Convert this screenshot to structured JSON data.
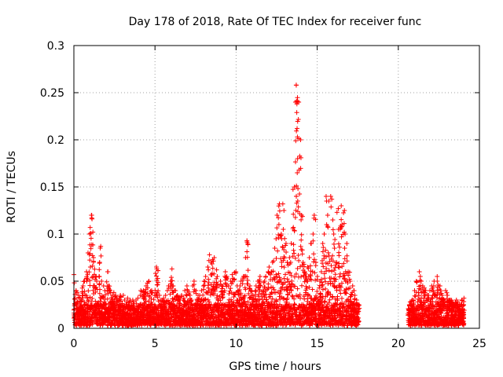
{
  "chart_data": {
    "type": "scatter",
    "title": "Day 178 of 2018, Rate Of TEC Index for receiver func",
    "xlabel": "GPS time / hours",
    "ylabel": "ROTI / TECUs",
    "xlim": [
      0,
      25
    ],
    "ylim": [
      0,
      0.3
    ],
    "x_ticks": [
      0,
      5,
      10,
      15,
      20,
      25
    ],
    "y_ticks": [
      0,
      0.05,
      0.1,
      0.15,
      0.2,
      0.25,
      0.3
    ],
    "x_tick_labels": [
      "0",
      "5",
      "10",
      "15",
      "20",
      "25"
    ],
    "y_tick_labels": [
      "0",
      "0.05",
      "0.1",
      "0.15",
      "0.2",
      "0.25",
      "0.3"
    ],
    "grid": true,
    "marker": "plus",
    "color": "#ff0000",
    "segments": [
      {
        "name": "",
        "x": [
          0.0,
          0.1,
          0.2,
          0.3,
          0.4,
          0.5,
          0.6,
          0.7,
          0.8,
          0.9,
          1.0,
          1.1,
          1.2,
          1.3,
          1.4,
          1.5,
          1.6,
          1.7,
          1.8,
          1.9,
          2.0,
          2.1,
          2.2,
          2.3,
          2.4,
          2.5,
          2.6,
          2.7,
          2.8,
          2.9,
          3.0,
          3.1,
          3.2,
          3.3,
          3.4,
          3.5,
          3.6,
          3.7,
          3.8,
          3.9,
          4.0,
          4.1,
          4.2,
          4.3,
          4.4,
          4.5,
          4.6,
          4.7,
          4.8,
          4.9,
          5.0,
          5.1,
          5.2,
          5.3,
          5.4,
          5.5,
          5.6,
          5.7,
          5.8,
          5.9,
          6.0,
          6.1,
          6.2,
          6.3,
          6.4,
          6.5,
          6.6,
          6.7,
          6.8,
          6.9,
          7.0,
          7.1,
          7.2,
          7.3,
          7.4,
          7.5,
          7.6,
          7.7,
          7.8,
          7.9,
          8.0,
          8.1,
          8.2,
          8.3,
          8.4,
          8.5,
          8.6,
          8.7,
          8.8,
          8.9,
          9.0,
          9.1,
          9.2,
          9.3,
          9.4,
          9.5,
          9.6,
          9.7,
          9.8,
          9.9,
          10.0,
          10.1,
          10.2,
          10.3,
          10.4,
          10.5,
          10.6,
          10.7,
          10.8,
          10.9,
          11.0,
          11.1,
          11.2,
          11.3,
          11.4,
          11.5,
          11.6,
          11.7,
          11.8,
          11.9,
          12.0,
          12.1,
          12.2,
          12.3,
          12.4,
          12.5,
          12.6,
          12.7,
          12.8,
          12.9,
          13.0,
          13.1,
          13.2,
          13.3,
          13.4,
          13.5,
          13.6,
          13.7,
          13.8,
          13.9,
          14.0,
          14.1,
          14.2,
          14.3,
          14.4,
          14.5,
          14.6,
          14.7,
          14.8,
          14.9,
          15.0,
          15.1,
          15.2,
          15.3,
          15.4,
          15.5,
          15.6,
          15.7,
          15.8,
          15.9,
          16.0,
          16.1,
          16.2,
          16.3,
          16.4,
          16.5,
          16.6,
          16.7,
          16.8,
          16.9,
          17.0,
          17.1,
          17.2,
          17.3,
          17.4,
          17.5
        ],
        "y_max": [
          0.057,
          0.04,
          0.035,
          0.032,
          0.03,
          0.045,
          0.05,
          0.06,
          0.08,
          0.1,
          0.12,
          0.117,
          0.075,
          0.055,
          0.05,
          0.07,
          0.087,
          0.05,
          0.045,
          0.04,
          0.06,
          0.045,
          0.04,
          0.035,
          0.038,
          0.035,
          0.032,
          0.03,
          0.035,
          0.033,
          0.035,
          0.03,
          0.028,
          0.032,
          0.03,
          0.025,
          0.03,
          0.028,
          0.03,
          0.032,
          0.035,
          0.04,
          0.04,
          0.038,
          0.045,
          0.048,
          0.05,
          0.04,
          0.038,
          0.035,
          0.065,
          0.063,
          0.035,
          0.03,
          0.03,
          0.032,
          0.035,
          0.04,
          0.045,
          0.05,
          0.063,
          0.045,
          0.04,
          0.035,
          0.033,
          0.03,
          0.035,
          0.032,
          0.04,
          0.045,
          0.04,
          0.035,
          0.03,
          0.045,
          0.05,
          0.04,
          0.035,
          0.035,
          0.04,
          0.045,
          0.05,
          0.055,
          0.065,
          0.078,
          0.07,
          0.073,
          0.075,
          0.062,
          0.055,
          0.045,
          0.05,
          0.045,
          0.04,
          0.06,
          0.055,
          0.045,
          0.05,
          0.057,
          0.052,
          0.06,
          0.045,
          0.04,
          0.045,
          0.05,
          0.055,
          0.075,
          0.093,
          0.09,
          0.045,
          0.04,
          0.035,
          0.04,
          0.045,
          0.05,
          0.055,
          0.045,
          0.04,
          0.05,
          0.055,
          0.06,
          0.065,
          0.06,
          0.07,
          0.085,
          0.095,
          0.12,
          0.132,
          0.1,
          0.095,
          0.105,
          0.09,
          0.07,
          0.075,
          0.07,
          0.09,
          0.15,
          0.24,
          0.258,
          0.24,
          0.2,
          0.12,
          0.07,
          0.06,
          0.055,
          0.065,
          0.075,
          0.09,
          0.1,
          0.12,
          0.07,
          0.055,
          0.05,
          0.06,
          0.09,
          0.1,
          0.11,
          0.12,
          0.135,
          0.14,
          0.115,
          0.1,
          0.07,
          0.065,
          0.105,
          0.13,
          0.11,
          0.125,
          0.1,
          0.09,
          0.06,
          0.05,
          0.045,
          0.04,
          0.035,
          0.03,
          0.025,
          0.02
        ]
      },
      {
        "name": "",
        "x": [
          20.6,
          20.7,
          20.8,
          20.9,
          21.0,
          21.1,
          21.2,
          21.3,
          21.4,
          21.5,
          21.6,
          21.7,
          21.8,
          21.9,
          22.0,
          22.1,
          22.2,
          22.3,
          22.4,
          22.5,
          22.6,
          22.7,
          22.8,
          22.9,
          23.0,
          23.1,
          23.2,
          23.3,
          23.4,
          23.5,
          23.6,
          23.7,
          23.8,
          23.9,
          24.0
        ],
        "y_max": [
          0.025,
          0.028,
          0.03,
          0.03,
          0.04,
          0.05,
          0.06,
          0.055,
          0.05,
          0.045,
          0.04,
          0.035,
          0.035,
          0.04,
          0.045,
          0.045,
          0.05,
          0.055,
          0.05,
          0.045,
          0.04,
          0.035,
          0.03,
          0.04,
          0.035,
          0.03,
          0.03,
          0.028,
          0.025,
          0.03,
          0.028,
          0.025,
          0.025,
          0.03,
          0.032
        ]
      }
    ],
    "outliers": [
      {
        "x": 13.71,
        "y": 0.258
      },
      {
        "x": 13.73,
        "y": 0.241
      },
      {
        "x": 13.75,
        "y": 0.238
      },
      {
        "x": 13.74,
        "y": 0.229
      },
      {
        "x": 13.76,
        "y": 0.212
      },
      {
        "x": 13.78,
        "y": 0.203
      },
      {
        "x": 13.79,
        "y": 0.18
      },
      {
        "x": 13.77,
        "y": 0.165
      },
      {
        "x": 13.72,
        "y": 0.151
      },
      {
        "x": 13.8,
        "y": 0.135
      },
      {
        "x": 13.81,
        "y": 0.124
      },
      {
        "x": 15.55,
        "y": 0.14
      },
      {
        "x": 15.58,
        "y": 0.135
      },
      {
        "x": 15.9,
        "y": 0.137
      },
      {
        "x": 16.3,
        "y": 0.127
      },
      {
        "x": 16.22,
        "y": 0.123
      },
      {
        "x": 12.88,
        "y": 0.132
      },
      {
        "x": 12.95,
        "y": 0.125
      },
      {
        "x": 1.1,
        "y": 0.12
      },
      {
        "x": 1.12,
        "y": 0.116
      }
    ]
  }
}
